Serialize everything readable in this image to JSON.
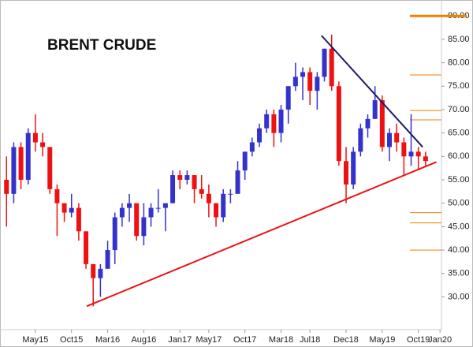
{
  "chart_data": {
    "type": "candlestick",
    "title": "BRENT CRUDE",
    "x": [
      0,
      1,
      2,
      3,
      4,
      5,
      6,
      7,
      8,
      9,
      10,
      11,
      12,
      13,
      14,
      15,
      16,
      17,
      18,
      19,
      20,
      21,
      22,
      23,
      24,
      25,
      26,
      27,
      28,
      29,
      30,
      31,
      32,
      33,
      34,
      35,
      36,
      37,
      38,
      39,
      40,
      41,
      42,
      43,
      44,
      45,
      46,
      47,
      48,
      49,
      50,
      51,
      52,
      53,
      54,
      55,
      56,
      57,
      58
    ],
    "open": [
      55,
      52,
      62,
      55,
      65,
      63,
      62,
      53,
      50,
      48,
      49,
      44,
      37,
      34,
      36,
      40,
      47,
      49,
      50,
      43,
      47,
      49,
      49,
      50,
      56,
      55,
      56,
      53,
      52,
      50,
      47,
      52,
      52,
      57,
      61,
      63,
      66,
      69,
      65,
      70,
      75,
      77,
      78,
      74,
      77,
      83,
      75,
      59,
      54,
      61,
      66,
      68,
      72,
      62,
      65,
      63,
      60,
      61,
      60
    ],
    "high": [
      60,
      63,
      63,
      66,
      69,
      65,
      62,
      54,
      50,
      52,
      50,
      44,
      37,
      37,
      42,
      48,
      50,
      52,
      50,
      50,
      50,
      53,
      50,
      57,
      57,
      57,
      56,
      56,
      54,
      50,
      53,
      53,
      59,
      61,
      64,
      67,
      70,
      70,
      71,
      75,
      80,
      79,
      79,
      78,
      83,
      86,
      76,
      62,
      62,
      67,
      69,
      75,
      73,
      66,
      67,
      64,
      69,
      62,
      61
    ],
    "low": [
      45,
      50,
      53,
      54,
      61,
      60,
      52,
      43,
      46,
      47,
      42,
      36,
      28,
      30,
      36,
      37,
      45,
      46,
      42,
      41,
      45,
      48,
      44,
      50,
      53,
      54,
      50,
      51,
      47,
      45,
      46,
      50,
      52,
      55,
      60,
      62,
      65,
      62,
      63,
      67,
      74,
      72,
      71,
      70,
      76,
      74,
      58,
      50,
      53,
      60,
      64,
      68,
      61,
      59,
      61,
      56,
      58,
      57,
      58
    ],
    "close": [
      52,
      62,
      55,
      65,
      63,
      62,
      53,
      50,
      48,
      49,
      44,
      37,
      34,
      36,
      40,
      47,
      49,
      50,
      43,
      47,
      49,
      49,
      50,
      56,
      55,
      56,
      53,
      52,
      50,
      47,
      52,
      52,
      57,
      61,
      63,
      66,
      69,
      65,
      70,
      75,
      77,
      78,
      74,
      77,
      83,
      75,
      59,
      54,
      61,
      66,
      68,
      72,
      62,
      65,
      63,
      60,
      61,
      60,
      59
    ],
    "up_color": "#3333cc",
    "down_color": "#ee1111",
    "xlim": [
      -0.9,
      60.2
    ],
    "xticks": [
      {
        "value": 4,
        "label": "May15"
      },
      {
        "value": 9,
        "label": "Oct15"
      },
      {
        "value": 14,
        "label": "Mar16"
      },
      {
        "value": 19,
        "label": "Aug16"
      },
      {
        "value": 24,
        "label": "Jan17"
      },
      {
        "value": 28,
        "label": "May17"
      },
      {
        "value": 33,
        "label": "Oct17"
      },
      {
        "value": 38,
        "label": "Mar18"
      },
      {
        "value": 42,
        "label": "Jul18"
      },
      {
        "value": 47,
        "label": "Dec18"
      },
      {
        "value": 52,
        "label": "May19"
      },
      {
        "value": 57,
        "label": "Oct19"
      },
      {
        "value": 60,
        "label": "Jan20"
      }
    ],
    "ylim": [
      23,
      93.4
    ],
    "yticks": [
      {
        "value": 30,
        "label": "30.00"
      },
      {
        "value": 35,
        "label": "35.00"
      },
      {
        "value": 40,
        "label": "40.00"
      },
      {
        "value": 45,
        "label": "45.00"
      },
      {
        "value": 50,
        "label": "50.00"
      },
      {
        "value": 55,
        "label": "55.00"
      },
      {
        "value": 60,
        "label": "60.00"
      },
      {
        "value": 65,
        "label": "65.00"
      },
      {
        "value": 70,
        "label": "70.00"
      },
      {
        "value": 75,
        "label": "75.00"
      },
      {
        "value": 80,
        "label": "80.00"
      },
      {
        "value": 85,
        "label": "85.00"
      },
      {
        "value": 90,
        "label": "90.00"
      }
    ],
    "trendlines": [
      {
        "color": "#ee1111",
        "x": [
          11.1,
          59.5
        ],
        "y": [
          28.0,
          58.8
        ]
      },
      {
        "color": "#1a1a66",
        "x": [
          43.6,
          57.6
        ],
        "y": [
          85.8,
          62.0
        ]
      }
    ],
    "levels": [
      {
        "value": 90,
        "width": 3
      },
      {
        "value": 77.4,
        "width": 1
      },
      {
        "value": 69.8,
        "width": 1
      },
      {
        "value": 67.8,
        "width": 1
      },
      {
        "value": 48,
        "width": 1
      },
      {
        "value": 45.8,
        "width": 1
      },
      {
        "value": 40,
        "width": 1
      }
    ],
    "level_color": "#f08000"
  }
}
